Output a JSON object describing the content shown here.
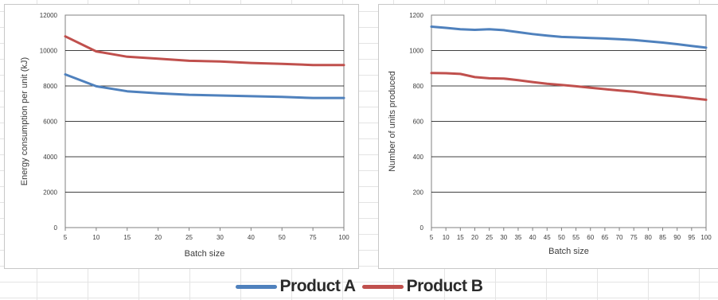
{
  "colors": {
    "product_a": "#4f81bd",
    "product_b": "#c0504d",
    "gridline": "#000000",
    "plot_border": "#808080"
  },
  "legend": {
    "items": [
      {
        "label": "Product A",
        "color": "#4f81bd"
      },
      {
        "label": "Product B",
        "color": "#c0504d"
      }
    ]
  },
  "chart_data": [
    {
      "type": "line",
      "xlabel": "Batch size",
      "ylabel": "Energy consumption per unit (kJ)",
      "categories": [
        "5",
        "10",
        "15",
        "20",
        "25",
        "30",
        "40",
        "50",
        "75",
        "100"
      ],
      "ylim": [
        0,
        12000
      ],
      "yticks": [
        "0",
        "2000",
        "4000",
        "6000",
        "8000",
        "10000",
        "12000"
      ],
      "grid": true,
      "series": [
        {
          "name": "Product A",
          "values": [
            8650,
            7980,
            7700,
            7580,
            7500,
            7460,
            7420,
            7380,
            7320,
            7320
          ]
        },
        {
          "name": "Product B",
          "values": [
            10800,
            9950,
            9650,
            9540,
            9420,
            9380,
            9300,
            9250,
            9180,
            9180
          ]
        }
      ]
    },
    {
      "type": "line",
      "xlabel": "Batch size",
      "ylabel": "Number of units produced",
      "categories": [
        "5",
        "10",
        "15",
        "20",
        "25",
        "30",
        "35",
        "40",
        "45",
        "50",
        "55",
        "60",
        "65",
        "70",
        "75",
        "80",
        "85",
        "90",
        "95",
        "100"
      ],
      "ylim": [
        0,
        1200
      ],
      "yticks": [
        "0",
        "200",
        "400",
        "600",
        "800",
        "1000",
        "1200"
      ],
      "grid": true,
      "series": [
        {
          "name": "Product A",
          "values": [
            1135,
            1128,
            1120,
            1117,
            1120,
            1115,
            1104,
            1093,
            1084,
            1077,
            1074,
            1071,
            1068,
            1064,
            1060,
            1052,
            1045,
            1036,
            1026,
            1016
          ]
        },
        {
          "name": "Product B",
          "values": [
            873,
            872,
            868,
            850,
            843,
            842,
            833,
            822,
            812,
            806,
            798,
            790,
            782,
            774,
            767,
            757,
            748,
            740,
            731,
            722
          ]
        }
      ]
    }
  ]
}
